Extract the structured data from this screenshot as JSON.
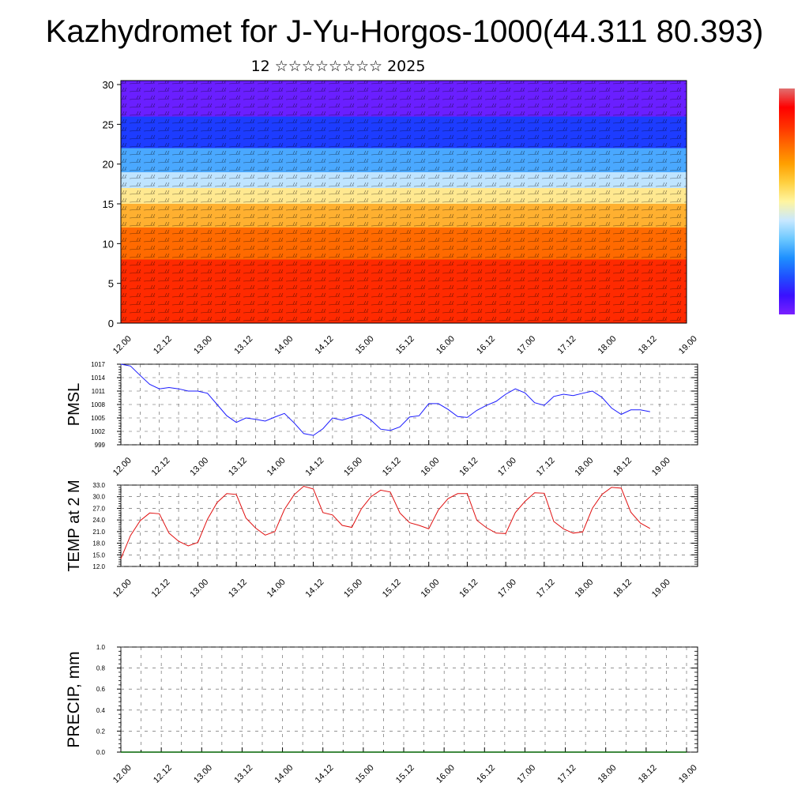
{
  "title": "Kazhydromet for J-Yu-Horgos-1000(44.311 80.393)",
  "subtitle": "12 ☆☆☆☆☆☆☆☆ 2025",
  "colors": {
    "pmsl_line": "#1a1aff",
    "temp_line": "#e01010",
    "precip_line": "#006400",
    "colorbar": [
      "#e07070",
      "#ff0000",
      "#ff3000",
      "#ff6a00",
      "#ffa000",
      "#ffd040",
      "#fff5a0",
      "#c8e8ff",
      "#6cc8ff",
      "#1e90ff",
      "#1f4fff",
      "#3a10ff",
      "#7a20ff"
    ]
  },
  "chart_data": [
    {
      "type": "heatmap",
      "title": "",
      "xlabel": "",
      "ylabel": "",
      "y_ticks": [
        "0",
        "5",
        "10",
        "15",
        "20",
        "25",
        "30"
      ],
      "ylim": [
        0,
        30.5
      ],
      "x_ticks": [
        "12.00",
        "12.12",
        "13.00",
        "13.12",
        "14.00",
        "14.12",
        "15.00",
        "15.12",
        "16.00",
        "16.12",
        "17.00",
        "17.12",
        "18.00",
        "18.12",
        "19.00"
      ],
      "overlay": "wind barbs",
      "colormap_bands": [
        {
          "from": 0,
          "to": 8,
          "color": "#ff2a00"
        },
        {
          "from": 8,
          "to": 12,
          "color": "#ff6a00"
        },
        {
          "from": 12,
          "to": 15,
          "color": "#ffb030"
        },
        {
          "from": 15,
          "to": 17,
          "color": "#ffe890"
        },
        {
          "from": 17,
          "to": 19,
          "color": "#bfe4ff"
        },
        {
          "from": 19,
          "to": 22,
          "color": "#4aa8ff"
        },
        {
          "from": 22,
          "to": 26,
          "color": "#1d3cff"
        },
        {
          "from": 26,
          "to": 30.5,
          "color": "#6a1fff"
        }
      ]
    },
    {
      "type": "line",
      "ylabel": "PMSL",
      "ylim": [
        999,
        1017
      ],
      "y_ticks": [
        "999",
        "1002",
        "1005",
        "1008",
        "1011",
        "1014",
        "1017"
      ],
      "x_ticks": [
        "12.00",
        "12.12",
        "13.00",
        "13.12",
        "14.00",
        "14.12",
        "15.00",
        "15.12",
        "16.00",
        "16.12",
        "17.00",
        "17.12",
        "18.00",
        "18.12",
        "19.00"
      ],
      "series": [
        {
          "x": [
            0,
            3,
            6,
            9,
            12,
            15,
            18,
            21,
            24,
            27,
            30,
            33,
            36,
            39,
            42,
            45,
            48,
            51,
            54,
            57,
            60,
            63,
            66,
            69,
            72,
            75,
            78,
            81,
            84,
            87,
            90,
            93,
            96,
            99,
            102,
            105,
            108,
            111,
            114,
            117,
            120,
            123,
            126,
            129,
            132,
            135,
            138,
            141,
            144,
            147,
            150,
            153,
            156,
            159,
            162,
            165
          ],
          "values": [
            1017,
            1016.6,
            1014.5,
            1012.5,
            1011.5,
            1011.8,
            1011.5,
            1011,
            1011,
            1010.5,
            1008,
            1005.5,
            1004,
            1005,
            1004.7,
            1004.3,
            1005.2,
            1006,
            1003.9,
            1001.5,
            1001.1,
            1002.6,
            1005,
            1004.5,
            1005.2,
            1005.8,
            1004.5,
            1002.5,
            1002.2,
            1003,
            1005.2,
            1005.5,
            1008.2,
            1008.2,
            1006.9,
            1005.3,
            1005.1,
            1006.7,
            1007.8,
            1008.7,
            1010.3,
            1011.5,
            1010.6,
            1008.4,
            1007.8,
            1009.8,
            1010.3,
            1010,
            1010.5,
            1011,
            1009.6,
            1007.2,
            1005.8,
            1006.8,
            1006.8,
            1006.4
          ]
        }
      ]
    },
    {
      "type": "line",
      "ylabel": "TEMP at 2 M",
      "ylim": [
        12,
        33
      ],
      "y_ticks": [
        "12.0",
        "15.0",
        "18.0",
        "21.0",
        "24.0",
        "27.0",
        "30.0",
        "33.0"
      ],
      "x_ticks": [
        "12.00",
        "12.12",
        "13.00",
        "13.12",
        "14.00",
        "14.12",
        "15.00",
        "15.12",
        "16.00",
        "16.12",
        "17.00",
        "17.12",
        "18.00",
        "18.12",
        "19.00"
      ],
      "series": [
        {
          "x": [
            0,
            3,
            6,
            9,
            12,
            15,
            18,
            21,
            24,
            27,
            30,
            33,
            36,
            39,
            42,
            45,
            48,
            51,
            54,
            57,
            60,
            63,
            66,
            69,
            72,
            75,
            78,
            81,
            84,
            87,
            90,
            93,
            96,
            99,
            102,
            105,
            108,
            111,
            114,
            117,
            120,
            123,
            126,
            129,
            132,
            135,
            138,
            141,
            144,
            147,
            150,
            153,
            156,
            159,
            162,
            165
          ],
          "values": [
            14,
            20,
            23.8,
            25.8,
            25.6,
            20.6,
            18.5,
            17.3,
            18.2,
            24.2,
            28.5,
            30.8,
            30.6,
            24.5,
            21.9,
            20.1,
            21,
            26.7,
            30.5,
            32.7,
            32,
            25.9,
            25.3,
            22.6,
            22.1,
            26.9,
            30,
            31.7,
            31.2,
            25.8,
            23.3,
            22.6,
            21.7,
            26.6,
            29.5,
            30.8,
            30.8,
            23.9,
            22,
            20.6,
            20.5,
            25.9,
            28.8,
            31,
            30.9,
            23.6,
            21.7,
            20.6,
            20.9,
            27,
            30.6,
            32.4,
            32.2,
            26,
            23.2,
            21.8
          ]
        }
      ]
    },
    {
      "type": "line",
      "ylabel": "PRECIP, mm",
      "ylim": [
        0,
        1
      ],
      "y_ticks": [
        "0.0",
        "0.2",
        "0.4",
        "0.6",
        "0.8",
        "1.0"
      ],
      "x_ticks": [
        "12.00",
        "12.12",
        "13.00",
        "13.12",
        "14.00",
        "14.12",
        "15.00",
        "15.12",
        "16.00",
        "16.12",
        "17.00",
        "17.12",
        "18.00",
        "18.12",
        "19.00"
      ],
      "series": [
        {
          "x": [
            0,
            168
          ],
          "values": [
            0,
            0
          ]
        }
      ]
    }
  ]
}
